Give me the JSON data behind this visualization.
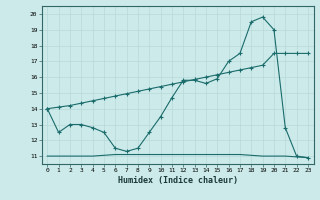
{
  "xlabel": "Humidex (Indice chaleur)",
  "ylabel": "",
  "bg_color": "#cceaea",
  "line_color": "#1a6b6b",
  "grid_color": "#b8d8d8",
  "xlim": [
    -0.5,
    23.5
  ],
  "ylim": [
    10.5,
    20.5
  ],
  "yticks": [
    11,
    12,
    13,
    14,
    15,
    16,
    17,
    18,
    19,
    20
  ],
  "xticks": [
    0,
    1,
    2,
    3,
    4,
    5,
    6,
    7,
    8,
    9,
    10,
    11,
    12,
    13,
    14,
    15,
    16,
    17,
    18,
    19,
    20,
    21,
    22,
    23
  ],
  "series1_x": [
    0,
    1,
    2,
    3,
    4,
    5,
    6,
    7,
    8,
    9,
    10,
    11,
    12,
    13,
    14,
    15,
    16,
    17,
    18,
    19,
    20,
    21,
    22,
    23
  ],
  "series1_y": [
    14.0,
    12.5,
    13.0,
    13.0,
    12.8,
    12.5,
    11.5,
    11.3,
    11.5,
    12.5,
    13.5,
    14.7,
    15.8,
    15.8,
    15.6,
    15.9,
    17.0,
    17.5,
    19.5,
    19.8,
    19.0,
    12.8,
    11.0,
    10.9
  ],
  "series2_x": [
    0,
    1,
    2,
    3,
    4,
    5,
    6,
    7,
    8,
    9,
    10,
    11,
    12,
    13,
    14,
    15,
    16,
    17,
    18,
    19,
    20,
    21,
    22,
    23
  ],
  "series2_y": [
    14.0,
    14.1,
    14.2,
    14.35,
    14.5,
    14.65,
    14.8,
    14.95,
    15.1,
    15.25,
    15.4,
    15.55,
    15.7,
    15.85,
    16.0,
    16.15,
    16.3,
    16.45,
    16.6,
    16.75,
    17.5,
    17.5,
    17.5,
    17.5
  ],
  "series3_x": [
    0,
    1,
    2,
    3,
    4,
    5,
    6,
    7,
    8,
    9,
    10,
    11,
    12,
    13,
    14,
    15,
    16,
    17,
    18,
    19,
    20,
    21,
    22,
    23
  ],
  "series3_y": [
    11.0,
    11.0,
    11.0,
    11.0,
    11.0,
    11.05,
    11.1,
    11.1,
    11.1,
    11.1,
    11.1,
    11.1,
    11.1,
    11.1,
    11.1,
    11.1,
    11.1,
    11.1,
    11.05,
    11.0,
    11.0,
    11.0,
    10.95,
    10.9
  ]
}
